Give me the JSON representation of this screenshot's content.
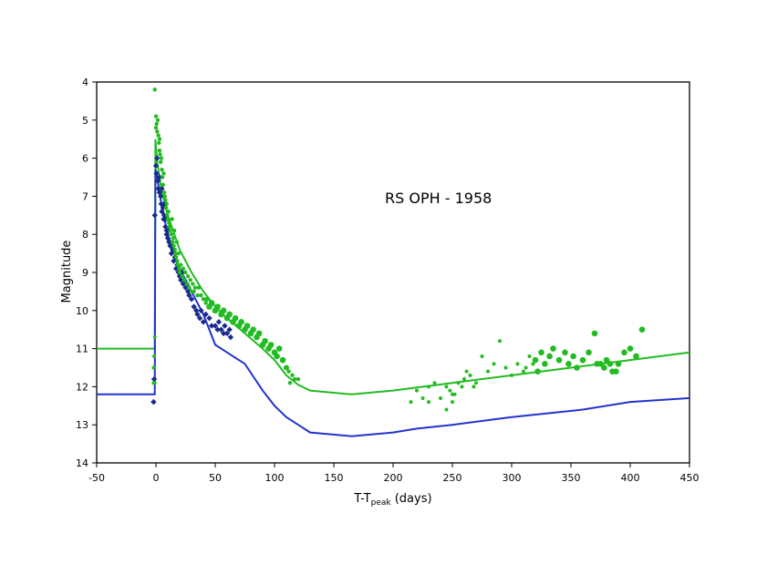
{
  "chart_data": {
    "type": "scatter",
    "title": "",
    "annotation": "RS OPH - 1958",
    "xlabel": "T-T",
    "xlabel_sub": "peak",
    "xlabel_unit": " (days)",
    "ylabel": "Magnitude",
    "xlim": [
      -50,
      450
    ],
    "ylim": [
      4,
      14
    ],
    "y_inverted": true,
    "grid": false,
    "legend": "none",
    "x_ticks": [
      -50,
      0,
      50,
      100,
      150,
      200,
      250,
      300,
      350,
      400,
      450
    ],
    "y_ticks": [
      4,
      5,
      6,
      7,
      8,
      9,
      10,
      11,
      12,
      13,
      14
    ],
    "colors": {
      "green": "#22bb22",
      "blue": "#2233cc",
      "navy": "#1a2a8c"
    },
    "series": [
      {
        "kind": "line",
        "color": "#22bb22",
        "points": [
          [
            -50,
            11
          ],
          [
            -1,
            11
          ],
          [
            -0.5,
            5.5
          ],
          [
            1,
            6.1
          ],
          [
            5,
            6.9
          ],
          [
            10,
            7.5
          ],
          [
            20,
            8.4
          ],
          [
            30,
            9.0
          ],
          [
            40,
            9.5
          ],
          [
            50,
            9.9
          ],
          [
            60,
            10.2
          ],
          [
            75,
            10.6
          ],
          [
            90,
            11.0
          ],
          [
            100,
            11.3
          ],
          [
            110,
            11.7
          ],
          [
            120,
            11.95
          ],
          [
            130,
            12.1
          ],
          [
            165,
            12.2
          ],
          [
            200,
            12.1
          ],
          [
            250,
            11.9
          ],
          [
            300,
            11.7
          ],
          [
            350,
            11.5
          ],
          [
            400,
            11.3
          ],
          [
            450,
            11.1
          ]
        ]
      },
      {
        "kind": "line",
        "color": "#2233cc",
        "points": [
          [
            -50,
            12.2
          ],
          [
            -1,
            12.2
          ],
          [
            -0.5,
            6.3
          ],
          [
            1,
            6.5
          ],
          [
            5,
            7.3
          ],
          [
            10,
            8.0
          ],
          [
            20,
            8.9
          ],
          [
            30,
            9.5
          ],
          [
            40,
            10.1
          ],
          [
            50,
            10.9
          ],
          [
            60,
            11.1
          ],
          [
            75,
            11.4
          ],
          [
            90,
            12.1
          ],
          [
            100,
            12.5
          ],
          [
            110,
            12.8
          ],
          [
            120,
            13.0
          ],
          [
            130,
            13.2
          ],
          [
            165,
            13.3
          ],
          [
            200,
            13.2
          ],
          [
            220,
            13.1
          ],
          [
            250,
            13.0
          ],
          [
            300,
            12.8
          ],
          [
            360,
            12.6
          ],
          [
            400,
            12.4
          ],
          [
            450,
            12.3
          ]
        ]
      },
      {
        "kind": "scatter",
        "marker": "diamond",
        "color": "#1a2a8c",
        "size": 3.2,
        "points": [
          [
            -2,
            12.4
          ],
          [
            -1.5,
            11.8
          ],
          [
            -1,
            7.5
          ],
          [
            0,
            6.2
          ],
          [
            0.5,
            6.4
          ],
          [
            1,
            6.0
          ],
          [
            1.5,
            6.6
          ],
          [
            2,
            6.8
          ],
          [
            3,
            6.5
          ],
          [
            3,
            6.9
          ],
          [
            4,
            7.0
          ],
          [
            4.5,
            7.2
          ],
          [
            5,
            6.8
          ],
          [
            5,
            7.4
          ],
          [
            6,
            7.3
          ],
          [
            6.5,
            7.6
          ],
          [
            7,
            7.2
          ],
          [
            7,
            7.5
          ],
          [
            8,
            7.8
          ],
          [
            8.5,
            7.6
          ],
          [
            9,
            8.0
          ],
          [
            9,
            7.9
          ],
          [
            10,
            8.1
          ],
          [
            10.5,
            7.9
          ],
          [
            11,
            8.2
          ],
          [
            12,
            8.3
          ],
          [
            13,
            8.5
          ],
          [
            14,
            8.4
          ],
          [
            15,
            8.7
          ],
          [
            16,
            8.6
          ],
          [
            17,
            8.9
          ],
          [
            18,
            8.8
          ],
          [
            19,
            9.0
          ],
          [
            20,
            9.1
          ],
          [
            21,
            9.2
          ],
          [
            22,
            9.0
          ],
          [
            23,
            9.3
          ],
          [
            24,
            9.2
          ],
          [
            25,
            9.4
          ],
          [
            26,
            9.3
          ],
          [
            27,
            9.5
          ],
          [
            28,
            9.6
          ],
          [
            30,
            9.7
          ],
          [
            32,
            9.9
          ],
          [
            34,
            10.0
          ],
          [
            35,
            10.1
          ],
          [
            37,
            10.2
          ],
          [
            38,
            10.0
          ],
          [
            40,
            10.3
          ],
          [
            42,
            10.1
          ],
          [
            45,
            10.2
          ],
          [
            47,
            10.4
          ],
          [
            50,
            10.4
          ],
          [
            52,
            10.5
          ],
          [
            53,
            10.3
          ],
          [
            55,
            10.5
          ],
          [
            57,
            10.6
          ],
          [
            58,
            10.4
          ],
          [
            60,
            10.6
          ],
          [
            62,
            10.5
          ],
          [
            63,
            10.7
          ]
        ]
      },
      {
        "kind": "scatter",
        "marker": "circle",
        "color": "#22bb22",
        "points": [
          [
            -1,
            4.2,
            2.2
          ],
          [
            0,
            4.9,
            2.2
          ],
          [
            -2,
            11.5,
            2
          ],
          [
            -2,
            11.9,
            2
          ],
          [
            -1.5,
            11.2,
            2
          ],
          [
            -1,
            10.7,
            2
          ],
          [
            0,
            5.2,
            2.2
          ],
          [
            0.5,
            5.1,
            2.2
          ],
          [
            1,
            5.3,
            2.2
          ],
          [
            1.5,
            5.0,
            2.2
          ],
          [
            2,
            5.4,
            2.2
          ],
          [
            2.5,
            5.6,
            2.2
          ],
          [
            3,
            5.5,
            2.2
          ],
          [
            3,
            5.8,
            2.2
          ],
          [
            3.5,
            5.9,
            2.2
          ],
          [
            4,
            6.1,
            2.2
          ],
          [
            4.5,
            6.0,
            2.2
          ],
          [
            5,
            6.3,
            2.2
          ],
          [
            5.5,
            6.5,
            2.2
          ],
          [
            6,
            6.7,
            2.2
          ],
          [
            6.5,
            6.4,
            2.2
          ],
          [
            7,
            6.9,
            2.2
          ],
          [
            7.5,
            7.0,
            2.2
          ],
          [
            8,
            7.1,
            2.2
          ],
          [
            8.5,
            7.3,
            2.2
          ],
          [
            9,
            7.2,
            2.2
          ],
          [
            9.5,
            7.5,
            2.2
          ],
          [
            10,
            7.6,
            2.2
          ],
          [
            10.5,
            7.4,
            2.2
          ],
          [
            11,
            7.7,
            2.2
          ],
          [
            11.5,
            7.8,
            2.2
          ],
          [
            12,
            7.9,
            2.2
          ],
          [
            13,
            8.0,
            2.2
          ],
          [
            13.5,
            7.6,
            2.2
          ],
          [
            14,
            8.2,
            2.2
          ],
          [
            14.5,
            8.1,
            2.2
          ],
          [
            15,
            8.3,
            2.2
          ],
          [
            15.5,
            7.9,
            2.2
          ],
          [
            16,
            8.4,
            2.2
          ],
          [
            16.5,
            8.5,
            2.2
          ],
          [
            17,
            8.6,
            2.2
          ],
          [
            17.5,
            8.2,
            2.2
          ],
          [
            18,
            8.7,
            2.2
          ],
          [
            18.5,
            8.8,
            2.2
          ],
          [
            19,
            8.5,
            2.2
          ],
          [
            19.5,
            8.9,
            2.2
          ],
          [
            20,
            9.0,
            2.2
          ],
          [
            21,
            8.8,
            2.2
          ],
          [
            22,
            9.1,
            2.2
          ],
          [
            23,
            8.9,
            2.2
          ],
          [
            24,
            9.2,
            2.2
          ],
          [
            25,
            9.0,
            2.2
          ],
          [
            26,
            9.3,
            2.2
          ],
          [
            27,
            9.1,
            2.2
          ],
          [
            28,
            9.4,
            2.2
          ],
          [
            29,
            9.2,
            2.2
          ],
          [
            30,
            9.5,
            2.2
          ],
          [
            31,
            9.3,
            2.2
          ],
          [
            32,
            9.5,
            2.2
          ],
          [
            33,
            9.4,
            2.2
          ],
          [
            35,
            9.6,
            2.2
          ],
          [
            36,
            9.4,
            2.2
          ],
          [
            38,
            9.6,
            2.2
          ],
          [
            40,
            9.7,
            2.2
          ],
          [
            42,
            9.8,
            2.2
          ],
          [
            43,
            9.7,
            2.6
          ],
          [
            45,
            9.9,
            3.3
          ],
          [
            47,
            9.8,
            3.3
          ],
          [
            50,
            10.0,
            3.3
          ],
          [
            52,
            9.9,
            3.3
          ],
          [
            55,
            10.1,
            3.3
          ],
          [
            57,
            10.0,
            3.3
          ],
          [
            60,
            10.2,
            3.3
          ],
          [
            62,
            10.1,
            3.3
          ],
          [
            65,
            10.3,
            3.3
          ],
          [
            67,
            10.2,
            3.3
          ],
          [
            70,
            10.4,
            3.3
          ],
          [
            72,
            10.3,
            3.3
          ],
          [
            75,
            10.5,
            3.3
          ],
          [
            77,
            10.4,
            3.3
          ],
          [
            80,
            10.6,
            3.3
          ],
          [
            82,
            10.5,
            3.3
          ],
          [
            85,
            10.7,
            3.3
          ],
          [
            87,
            10.6,
            3.3
          ],
          [
            90,
            10.9,
            3.3
          ],
          [
            92,
            10.8,
            3.3
          ],
          [
            95,
            11.0,
            3.3
          ],
          [
            97,
            10.9,
            3.3
          ],
          [
            100,
            11.1,
            3.3
          ],
          [
            102,
            11.2,
            3.3
          ],
          [
            104,
            11.0,
            3.3
          ],
          [
            107,
            11.3,
            3.3
          ],
          [
            110,
            11.5,
            3
          ],
          [
            112,
            11.6,
            2.2
          ],
          [
            113,
            11.9,
            2.2
          ],
          [
            115,
            11.7,
            2.2
          ],
          [
            117,
            11.8,
            2.2
          ],
          [
            120,
            11.8,
            2.2
          ],
          [
            -1,
            11.9,
            2
          ],
          [
            215,
            12.4,
            2
          ],
          [
            220,
            12.1,
            2
          ],
          [
            225,
            12.3,
            2
          ],
          [
            230,
            12.0,
            2
          ],
          [
            235,
            11.9,
            2
          ],
          [
            240,
            12.3,
            2
          ],
          [
            245,
            12.0,
            2
          ],
          [
            248,
            12.1,
            2
          ],
          [
            250,
            12.4,
            2
          ],
          [
            252,
            12.2,
            2
          ],
          [
            255,
            11.9,
            2
          ],
          [
            258,
            12.0,
            2
          ],
          [
            260,
            11.8,
            2
          ],
          [
            265,
            11.7,
            2
          ],
          [
            270,
            11.9,
            2
          ],
          [
            275,
            11.2,
            2
          ],
          [
            280,
            11.6,
            2
          ],
          [
            285,
            11.4,
            2
          ],
          [
            290,
            10.8,
            2
          ],
          [
            295,
            11.5,
            2
          ],
          [
            300,
            11.7,
            2
          ],
          [
            305,
            11.4,
            2
          ],
          [
            310,
            11.6,
            2
          ],
          [
            312,
            11.5,
            2
          ],
          [
            315,
            11.2,
            2
          ],
          [
            320,
            11.3,
            3.3
          ],
          [
            325,
            11.1,
            3.3
          ],
          [
            328,
            11.4,
            3.3
          ],
          [
            332,
            11.2,
            3.3
          ],
          [
            335,
            11.0,
            3.3
          ],
          [
            340,
            11.3,
            3.3
          ],
          [
            345,
            11.1,
            3.3
          ],
          [
            348,
            11.4,
            3.3
          ],
          [
            352,
            11.2,
            3.3
          ],
          [
            355,
            11.5,
            3.3
          ],
          [
            360,
            11.3,
            3.3
          ],
          [
            365,
            11.1,
            3.3
          ],
          [
            370,
            10.6,
            3.3
          ],
          [
            375,
            11.4,
            3.3
          ],
          [
            380,
            11.3,
            3.3
          ],
          [
            385,
            11.6,
            3.3
          ],
          [
            390,
            11.4,
            3.3
          ],
          [
            395,
            11.1,
            3.3
          ],
          [
            400,
            11.0,
            3.3
          ],
          [
            405,
            11.2,
            3.3
          ],
          [
            410,
            10.5,
            3.3
          ],
          [
            378,
            11.5,
            3.3
          ],
          [
            372,
            11.4,
            3.3
          ],
          [
            383,
            11.4,
            3.3
          ],
          [
            388,
            11.6,
            3.3
          ],
          [
            318,
            11.4,
            2
          ],
          [
            322,
            11.6,
            3.3
          ],
          [
            230,
            12.4,
            2
          ],
          [
            262,
            11.6,
            2
          ],
          [
            268,
            12.0,
            2
          ],
          [
            245,
            12.6,
            2
          ],
          [
            250,
            12.2,
            2
          ]
        ]
      }
    ]
  }
}
